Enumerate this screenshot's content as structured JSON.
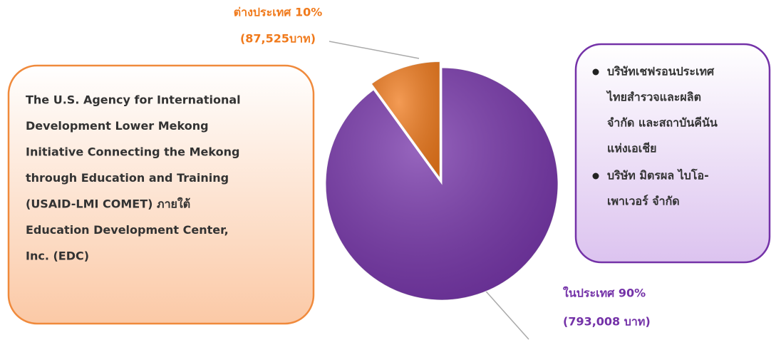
{
  "chart_data": {
    "type": "pie",
    "categories": [
      "ต่างประเทศ",
      "ในประเทศ"
    ],
    "values": [
      10,
      90
    ],
    "value_labels": [
      "ต่างประเทศ 10%",
      "ในประเทศ 90%"
    ],
    "amount_labels": [
      "(87,525บาท)",
      "(793,008 บาท)"
    ],
    "colors": [
      "#f07a1c",
      "#7432a8"
    ],
    "exploded": [
      true,
      false
    ]
  },
  "boxes": {
    "left": {
      "lines": [
        "The U.S. Agency for International",
        "Development Lower Mekong",
        "Initiative Connecting the Mekong",
        "through Education and Training",
        "(USAID-LMI COMET) ภายใต้",
        "Education Development Center,",
        "Inc. (EDC)"
      ]
    },
    "right": {
      "items": [
        [
          "บริษัทเชฟรอนประเทศ",
          "ไทยสำรวจและผลิต",
          "จำกัด  และสถาบันคีนัน",
          "แห่งเอเชีย"
        ],
        [
          "บริษัท  มิตรผล  ไบโอ-",
          "เพาเวอร์ จำกัด"
        ]
      ]
    }
  }
}
